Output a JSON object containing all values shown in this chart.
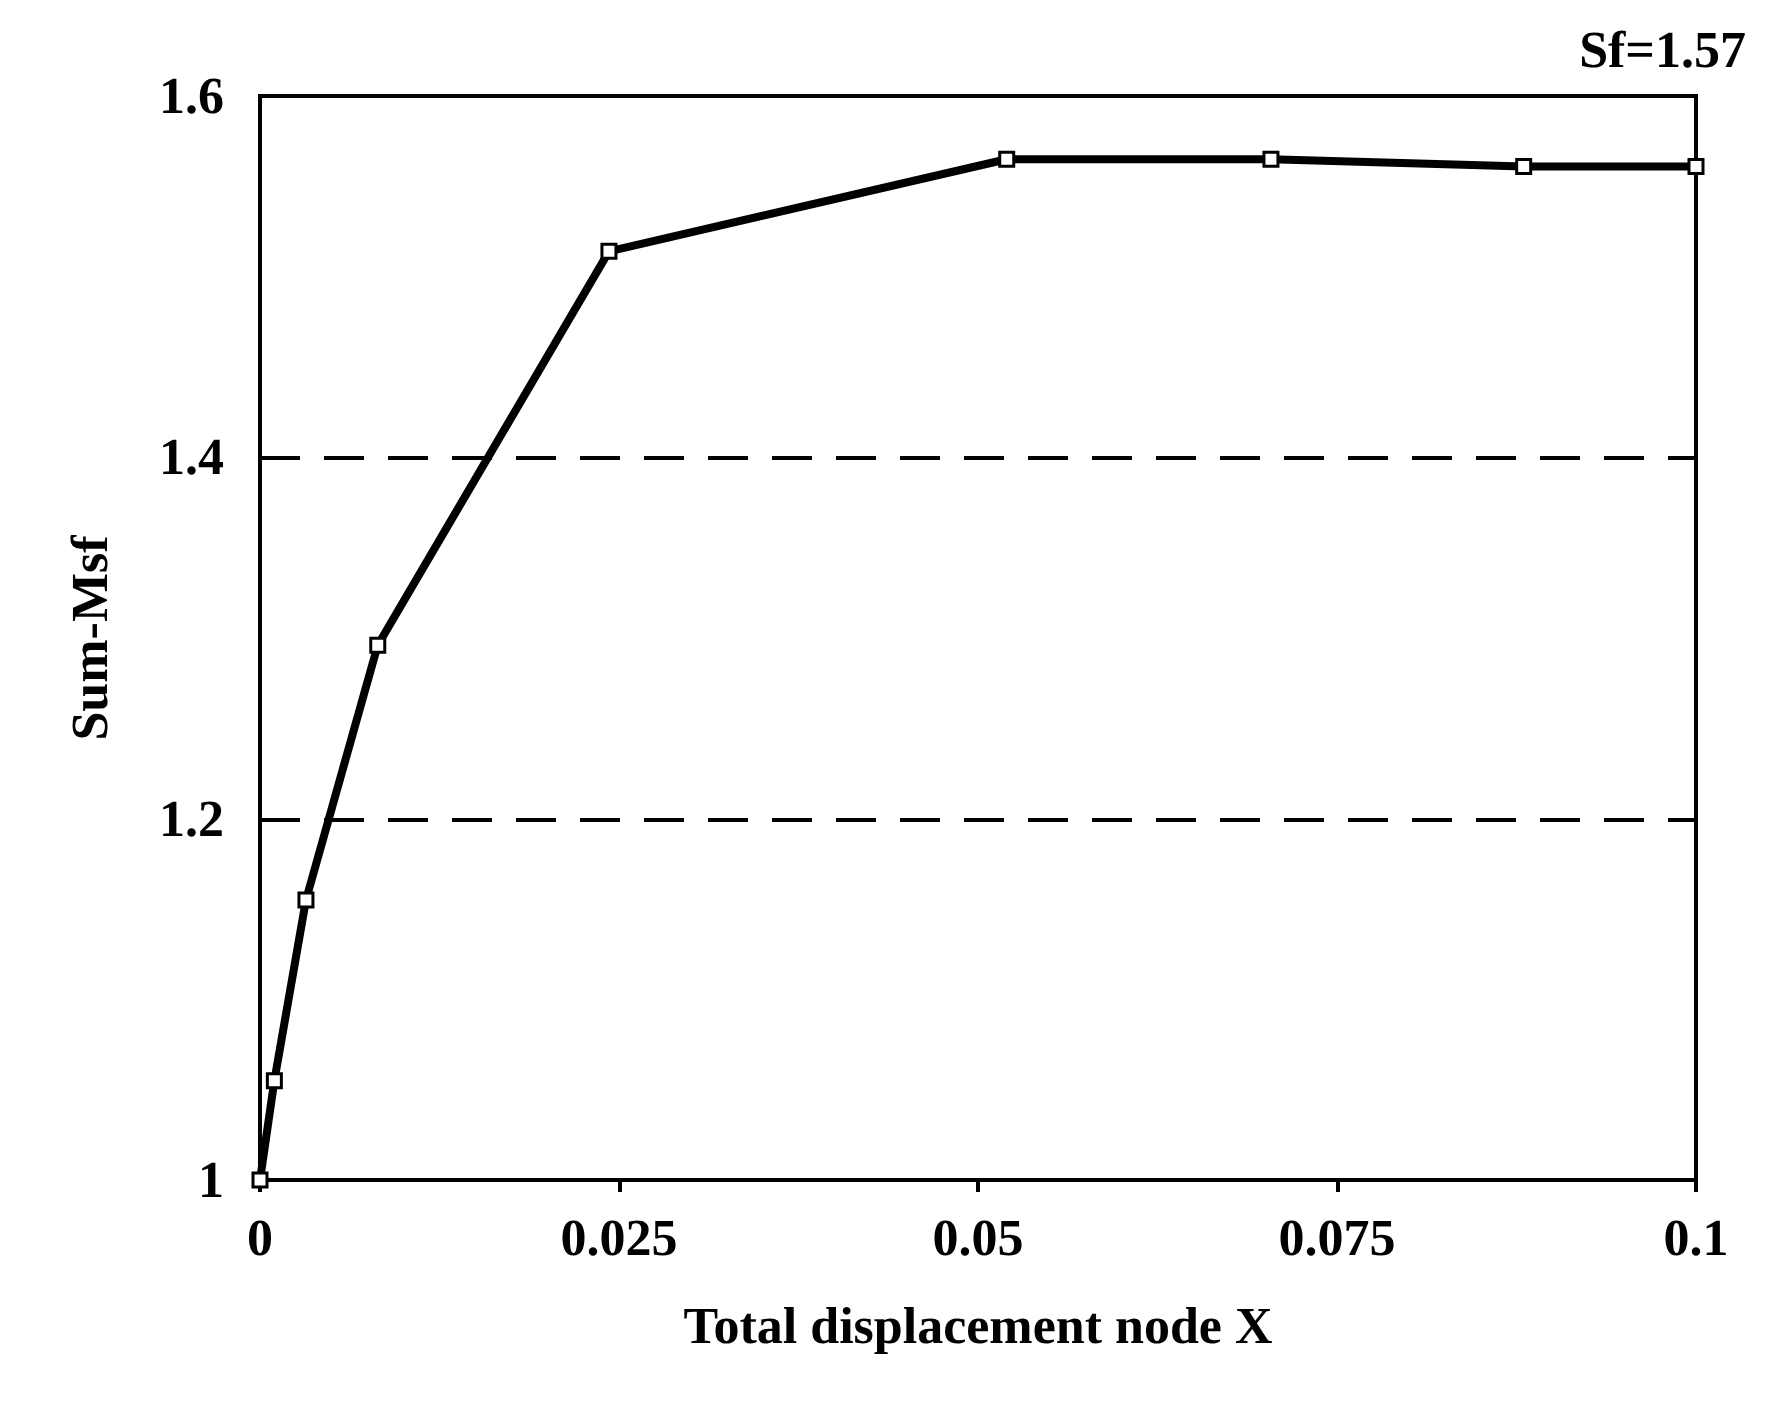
{
  "chart_data": {
    "type": "line",
    "xlabel": "Total displacement node X",
    "ylabel": "Sum-Msf",
    "annotations": [
      "Sf=1.57"
    ],
    "x": [
      0,
      0.001,
      0.0032,
      0.0082,
      0.0243,
      0.052,
      0.0704,
      0.088,
      0.1
    ],
    "values": [
      1,
      1.055,
      1.155,
      1.296,
      1.514,
      1.565,
      1.565,
      1.561,
      1.561
    ],
    "color": "#000000",
    "marker": "square",
    "line_style": "solid",
    "xlim": [
      0,
      0.1
    ],
    "xticks": [
      0,
      0.025,
      0.05,
      0.075,
      0.1
    ],
    "ylim": [
      1,
      1.6
    ],
    "yticks": [
      1,
      1.2,
      1.4,
      1.6
    ],
    "grid": "y"
  }
}
